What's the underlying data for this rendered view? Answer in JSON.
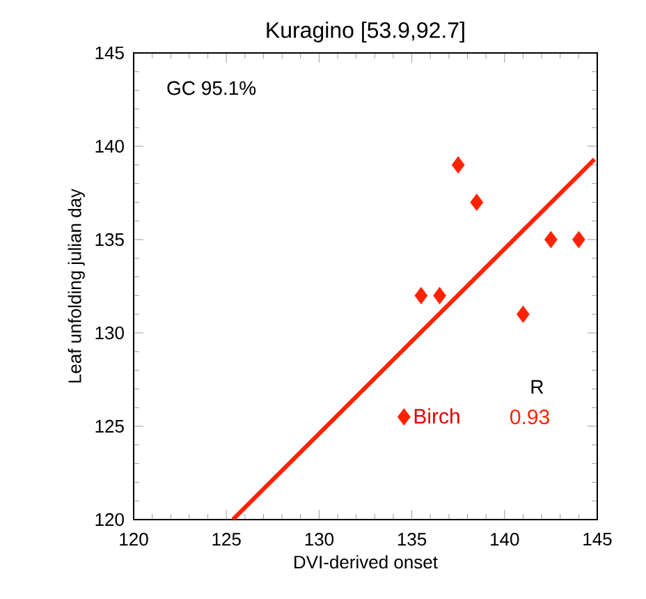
{
  "chart_data": {
    "type": "scatter",
    "title": "Kuragino [53.9,92.7]",
    "xlabel": "DVI-derived onset",
    "ylabel": "Leaf unfolding julian day",
    "xlim": [
      120,
      145
    ],
    "ylim": [
      120,
      145
    ],
    "xticks": [
      120,
      125,
      130,
      135,
      140,
      145
    ],
    "yticks": [
      120,
      125,
      130,
      135,
      140,
      145
    ],
    "marker": "diamond",
    "grid": false,
    "legend": "bottom right",
    "legend_title": "R",
    "annotations": [
      "GC 95.1%",
      "0.93"
    ],
    "series": [
      {
        "name": "Birch",
        "color": "#ff2200",
        "x": [
          135.5,
          136.5,
          137.5,
          138.5,
          141,
          142.5,
          144
        ],
        "values": [
          132,
          132,
          139,
          137,
          131,
          135,
          135
        ]
      },
      {
        "type": "line",
        "marker": "none",
        "color": "#ff2200",
        "x": [
          125.35,
          144.85
        ],
        "values": [
          120,
          139.3
        ]
      }
    ]
  }
}
